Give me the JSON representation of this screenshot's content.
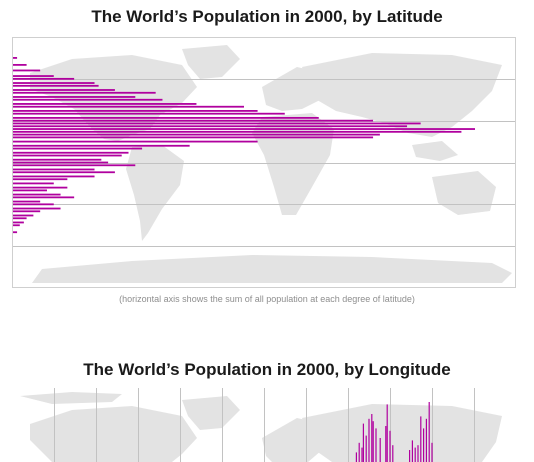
{
  "colors": {
    "population": "#b0009e",
    "land": "#e3e3e3",
    "grid": "#c2c2c2",
    "frame": "#cfcfcf"
  },
  "chart_data": [
    {
      "type": "bar",
      "title": "The World’s Population in 2000, by Latitude",
      "note": "(horizontal axis shows the sum of all population at each degree of latitude)",
      "orientation": "horizontal",
      "x_label": "",
      "y_label": "",
      "grid": true,
      "background": "world map",
      "series": [
        {
          "latitudes": [
            75,
            70,
            66,
            62,
            60,
            57,
            55,
            52,
            50,
            47,
            45,
            42,
            40,
            37,
            35,
            32,
            30,
            28,
            26,
            24,
            22,
            20,
            18,
            15,
            12,
            10,
            7,
            5,
            2,
            0,
            -2,
            -5,
            -7,
            -10,
            -12,
            -15,
            -18,
            -20,
            -23,
            -25,
            -28,
            -30,
            -33,
            -35,
            -38,
            -40,
            -43,
            -45,
            -50
          ],
          "values": [
            0.3,
            1.0,
            2.0,
            3.0,
            4.5,
            6.0,
            6.3,
            7.5,
            10.5,
            9.0,
            11.0,
            13.5,
            17.0,
            18.0,
            20.0,
            22.5,
            26.5,
            30.0,
            29.0,
            34.0,
            33.0,
            27.0,
            26.5,
            18.0,
            13.0,
            9.5,
            8.5,
            8.0,
            6.5,
            7.0,
            9.0,
            6.0,
            7.5,
            6.0,
            4.0,
            3.0,
            4.0,
            2.5,
            3.5,
            4.5,
            2.0,
            3.0,
            3.5,
            2.0,
            1.5,
            1.0,
            0.8,
            0.5,
            0.3
          ]
        }
      ]
    },
    {
      "type": "bar",
      "title": "The World’s Population in 2000, by Longitude",
      "orientation": "vertical",
      "x_label": "",
      "y_label": "",
      "grid": true,
      "background": "world map",
      "series": [
        {
          "longitudes": [
            66,
            68,
            70,
            71,
            73,
            75,
            77,
            78,
            80,
            83,
            87,
            88,
            90,
            92,
            104,
            106,
            108,
            110,
            112,
            114,
            116,
            118,
            120
          ],
          "values": [
            0.4,
            0.8,
            0.6,
            1.6,
            1.1,
            1.8,
            2.0,
            1.7,
            1.4,
            1.0,
            1.5,
            2.4,
            1.3,
            0.7,
            0.5,
            0.9,
            0.6,
            0.7,
            1.9,
            1.4,
            1.8,
            2.5,
            0.8
          ]
        }
      ]
    }
  ]
}
